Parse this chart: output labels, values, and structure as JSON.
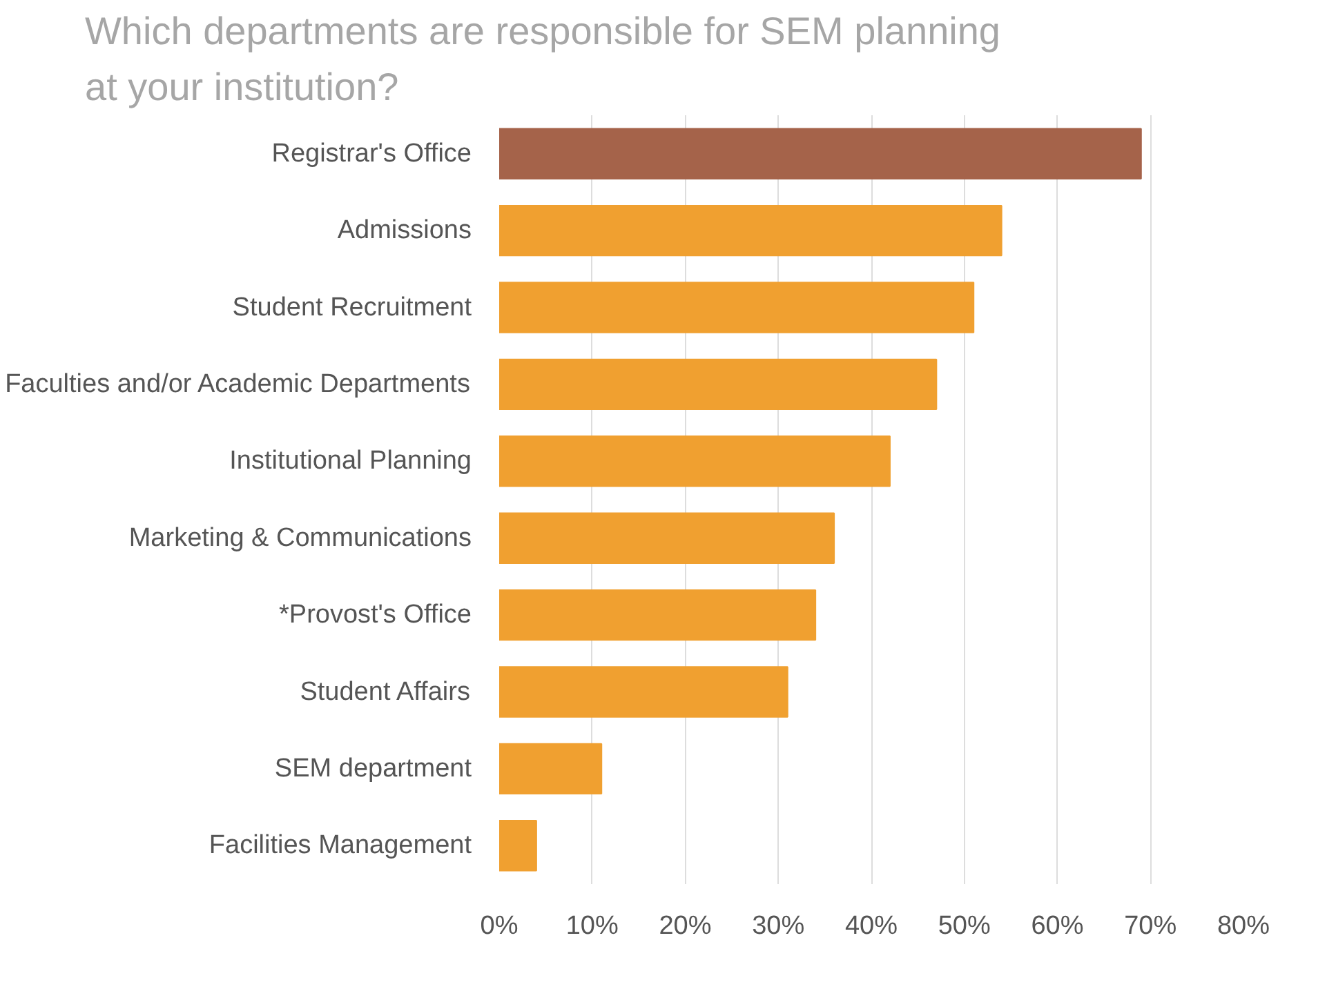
{
  "chart_data": {
    "type": "bar",
    "orientation": "horizontal",
    "title": "Which departments are responsible for SEM planning at your institution?",
    "categories": [
      "Registrar's Office",
      "Admissions",
      "Student Recruitment",
      "Faculties and/or Academic Departments",
      "Institutional Planning",
      "Marketing & Communications",
      "*Provost's Office",
      "Student Affairs",
      "SEM department",
      "Facilities Management"
    ],
    "values": [
      69,
      54,
      51,
      47,
      42,
      36,
      34,
      31,
      11,
      4
    ],
    "colors": [
      "#a5634a",
      "#f0a030",
      "#f0a030",
      "#f0a030",
      "#f0a030",
      "#f0a030",
      "#f0a030",
      "#f0a030",
      "#f0a030",
      "#f0a030"
    ],
    "xlim": [
      0,
      80
    ],
    "xticks": [
      {
        "value": 0,
        "label": "0%"
      },
      {
        "value": 10,
        "label": "10%"
      },
      {
        "value": 20,
        "label": "20%"
      },
      {
        "value": 30,
        "label": "30%"
      },
      {
        "value": 40,
        "label": "40%"
      },
      {
        "value": 50,
        "label": "50%"
      },
      {
        "value": 60,
        "label": "60%"
      },
      {
        "value": 70,
        "label": "70%"
      },
      {
        "value": 80,
        "label": "80%"
      }
    ],
    "grid": "x"
  }
}
